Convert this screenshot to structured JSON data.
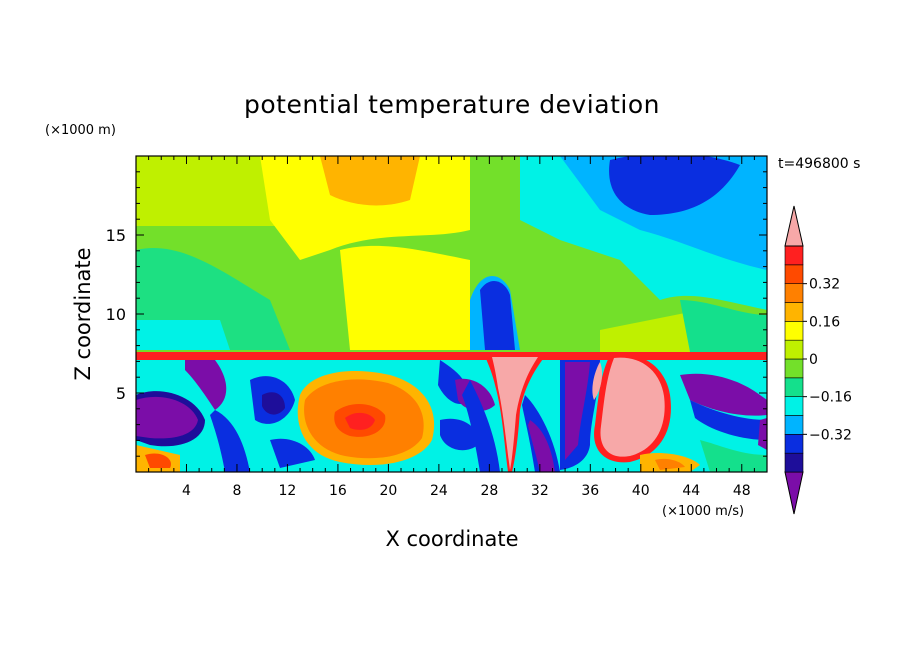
{
  "chart_data": {
    "type": "heatmap",
    "title": "potential temperature deviation",
    "xlabel": "X coordinate",
    "ylabel": "Z coordinate",
    "x_unit": "(×1000 m/s)",
    "y_unit": "(×1000 m)",
    "time_label": "t=496800 s",
    "xlim": [
      0,
      50
    ],
    "ylim": [
      0,
      20
    ],
    "x_ticks": [
      "4",
      "8",
      "12",
      "16",
      "20",
      "24",
      "28",
      "32",
      "36",
      "40",
      "44",
      "48"
    ],
    "y_ticks": [
      "5",
      "10",
      "15"
    ],
    "colorbar": {
      "levels": [
        -0.48,
        -0.4,
        -0.32,
        -0.24,
        -0.16,
        -0.08,
        0,
        0.08,
        0.16,
        0.24,
        0.32,
        0.4
      ],
      "tick_labels": [
        "0.32",
        "0.16",
        "0",
        "−0.16",
        "−0.32"
      ],
      "colors": [
        "#7b0da8",
        "#1e0e9a",
        "#0a2ee0",
        "#00b4ff",
        "#00f2e6",
        "#14e08c",
        "#73e02a",
        "#bff000",
        "#ffff00",
        "#ffb400",
        "#ff8000",
        "#ff4a00",
        "#ff2020",
        "#f7a8a8"
      ],
      "extend": "both"
    },
    "regions_description_free": true
  }
}
